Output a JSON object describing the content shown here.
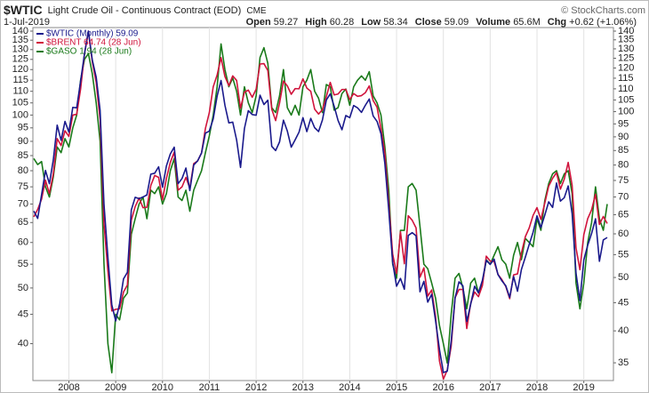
{
  "header": {
    "symbol": "$WTIC",
    "description": "Light Crude Oil - Continuous Contract (EOD)",
    "exchange": "CME",
    "date": "1-Jul-2019",
    "credit": "© StockCharts.com",
    "quote": [
      {
        "label": "Open",
        "value": 59.27
      },
      {
        "label": "High",
        "value": 60.28
      },
      {
        "label": "Low",
        "value": 58.34
      },
      {
        "label": "Close",
        "value": 59.09
      },
      {
        "label": "Volume",
        "value": "65.6M"
      },
      {
        "label": "Chg",
        "value": "+0.62 (+1.06%)"
      }
    ]
  },
  "chart_data": {
    "type": "line",
    "log_scale": true,
    "grid": "vertical",
    "legend": "top-left",
    "categories": [
      null,
      null,
      null,
      null,
      null,
      null,
      null,
      null,
      null,
      "2008",
      null,
      null,
      null,
      null,
      null,
      null,
      null,
      null,
      null,
      null,
      null,
      "2009",
      null,
      null,
      null,
      null,
      null,
      null,
      null,
      null,
      null,
      null,
      null,
      "2010",
      null,
      null,
      null,
      null,
      null,
      null,
      null,
      null,
      null,
      null,
      null,
      "2011",
      null,
      null,
      null,
      null,
      null,
      null,
      null,
      null,
      null,
      null,
      null,
      "2012",
      null,
      null,
      null,
      null,
      null,
      null,
      null,
      null,
      null,
      null,
      null,
      "2013",
      null,
      null,
      null,
      null,
      null,
      null,
      null,
      null,
      null,
      null,
      null,
      "2014",
      null,
      null,
      null,
      null,
      null,
      null,
      null,
      null,
      null,
      null,
      null,
      "2015",
      null,
      null,
      null,
      null,
      null,
      null,
      null,
      null,
      null,
      null,
      null,
      "2016",
      null,
      null,
      null,
      null,
      null,
      null,
      null,
      null,
      null,
      null,
      null,
      "2017",
      null,
      null,
      null,
      null,
      null,
      null,
      null,
      null,
      null,
      null,
      null,
      "2018",
      null,
      null,
      null,
      null,
      null,
      null,
      null,
      null,
      null,
      null,
      null,
      "2019",
      null,
      null,
      null,
      null,
      null,
      null
    ],
    "ylim": [
      34.5,
      140
    ],
    "yticks": [
      40,
      45,
      50,
      55,
      60,
      65,
      70,
      75,
      80,
      85,
      90,
      95,
      100,
      105,
      110,
      115,
      120,
      125,
      130,
      135,
      140
    ],
    "y2lim": [
      32.5,
      140
    ],
    "y2ticks": [
      35,
      40,
      45,
      50,
      55,
      60,
      65,
      70,
      75,
      80,
      85,
      90,
      95,
      100,
      105,
      110,
      115,
      120,
      125,
      130,
      135,
      140
    ],
    "series": [
      {
        "name": "$WTIC (Monthly) 59.09",
        "color": "#1a1a8c",
        "axis": "y2",
        "values": [
          66,
          64,
          70.7,
          78.2,
          74,
          81.7,
          94.5,
          88.7,
          96,
          91.8,
          101.8,
          101.6,
          113.5,
          127.4,
          140,
          124.1,
          115.5,
          100.6,
          67.8,
          54.4,
          44.6,
          41.7,
          44.8,
          49.7,
          51.1,
          66.3,
          69.9,
          69.5,
          70,
          70.6,
          77,
          77.3,
          79.4,
          72.9,
          79.7,
          83.8,
          86.2,
          74,
          75.6,
          79,
          71.9,
          80,
          81.4,
          84.1,
          91.4,
          92.2,
          97,
          106.7,
          113.9,
          102.7,
          95.4,
          95.7,
          88.8,
          79.2,
          93.2,
          100.4,
          98.8,
          98.5,
          107.1,
          103,
          104.9,
          86.5,
          85,
          88.1,
          96.5,
          92.2,
          86.2,
          88.9,
          91.8,
          97.5,
          92,
          97.2,
          93.5,
          92,
          96.6,
          105,
          107.7,
          102.3,
          96.4,
          92.7,
          98.4,
          97.5,
          102.6,
          101.6,
          99.7,
          102.7,
          105.4,
          98.2,
          96,
          91.2,
          80.5,
          66.2,
          53.3,
          48.2,
          49.8,
          47.6,
          59.6,
          60.3,
          59.5,
          47.1,
          49.2,
          45.1,
          46.6,
          41.7,
          37,
          33.6,
          33.8,
          38.3,
          45.9,
          49.1,
          48.3,
          41.6,
          44.7,
          48.2,
          46.9,
          49.4,
          53.7,
          52.8,
          54,
          50.6,
          49.3,
          48.3,
          46,
          50.2,
          47.2,
          51.7,
          54.4,
          57.4,
          60.4,
          64.7,
          61.6,
          64.9,
          68.6,
          67,
          74.2,
          68.8,
          69.8,
          73.3,
          65.3,
          50.9,
          45.4,
          53.8,
          57.2,
          60.1,
          63.9,
          53.5,
          58.5,
          59.09
        ]
      },
      {
        "name": "$BRENT 64.74 (28 Jun)",
        "color": "#d0143c",
        "values": [
          66.5,
          68.5,
          71.4,
          77,
          73,
          79,
          91,
          88.5,
          93.9,
          91.8,
          100,
          100.3,
          111,
          127.8,
          140,
          123.8,
          114,
          98.2,
          64.6,
          53.5,
          45.6,
          45.9,
          46,
          49.2,
          50.6,
          65.6,
          69.3,
          71.7,
          69,
          69.1,
          75.4,
          78.5,
          77.9,
          71.2,
          77.6,
          82.7,
          86.2,
          74,
          75,
          77.9,
          74.6,
          82.3,
          83.2,
          85.9,
          94.8,
          101,
          112,
          117.4,
          125.9,
          116.7,
          112.5,
          117,
          114.9,
          102.8,
          109.6,
          110.5,
          107.4,
          110.9,
          122.7,
          122.9,
          119.5,
          102.4,
          97.8,
          104.9,
          114.6,
          112.4,
          108.7,
          111.2,
          111.1,
          115.6,
          111.4,
          110,
          102.4,
          100.4,
          102.2,
          107.7,
          114,
          108.4,
          108.8,
          110.8,
          110.8,
          106.4,
          109,
          107.8,
          108.1,
          109.4,
          112.4,
          106,
          103.2,
          94.7,
          85.9,
          70.2,
          57.3,
          53,
          62.6,
          55.1,
          66.8,
          65.6,
          63.6,
          52.2,
          54.2,
          48.4,
          49.6,
          44.6,
          37.3,
          34.7,
          36,
          39.6,
          48.1,
          49.7,
          49.7,
          42.5,
          47,
          49.2,
          48.3,
          50.5,
          56.8,
          55.7,
          55.6,
          52.8,
          51.7,
          50.3,
          47.9,
          52.7,
          52.9,
          57.5,
          61.4,
          63.6,
          66.9,
          69,
          65.8,
          70.3,
          75.2,
          77.6,
          79.4,
          74.3,
          77.4,
          82.7,
          75.5,
          58.7,
          53.8,
          61.9,
          66,
          68.4,
          72.8,
          64.5,
          66.6,
          64.74
        ]
      },
      {
        "name": "$GASO 1.94 (28 Jun)",
        "color": "#1a7a1a",
        "values": [
          84,
          82,
          83,
          75,
          72,
          78,
          88,
          86,
          91,
          88,
          95,
          100,
          115,
          125,
          128,
          118,
          105,
          90,
          55,
          40,
          35.6,
          45,
          44,
          48,
          49,
          62,
          66,
          70,
          72,
          66,
          74,
          73,
          75,
          70,
          73,
          80,
          84,
          72,
          71,
          74,
          68,
          74,
          77,
          80,
          86,
          92,
          100,
          112,
          133,
          120,
          112,
          116,
          110,
          100,
          112,
          105,
          101,
          108,
          126,
          131,
          123,
          103,
          101,
          108,
          120,
          103,
          100,
          104,
          100,
          112,
          115,
          120,
          110,
          107,
          101,
          113,
          112,
          102,
          103,
          109,
          111,
          104,
          112,
          115,
          117,
          115,
          119,
          108,
          105,
          100,
          88,
          74,
          55,
          52,
          63,
          63,
          75,
          76,
          74,
          64,
          55,
          54,
          51,
          48,
          43,
          40,
          37,
          45,
          52,
          53,
          50,
          46,
          51,
          52,
          49,
          51,
          56,
          55,
          57,
          59,
          56,
          55,
          52,
          57,
          60,
          56,
          61,
          60,
          59,
          66,
          63,
          71,
          76,
          79,
          80,
          76,
          79,
          80,
          73,
          51,
          46,
          51,
          60,
          65,
          75,
          66,
          63,
          70
        ]
      }
    ]
  }
}
